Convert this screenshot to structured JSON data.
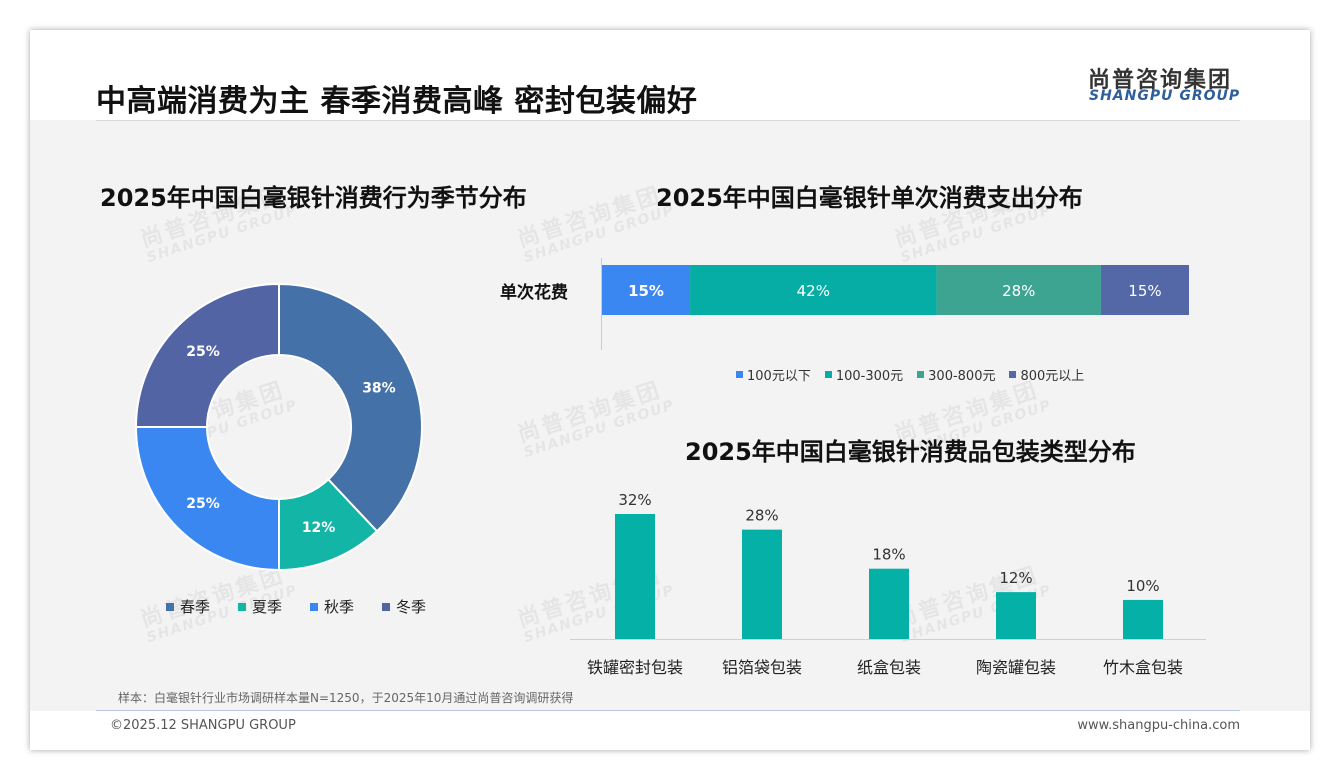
{
  "header": {
    "title": "中高端消费为主 春季消费高峰 密封包装偏好",
    "logo_cn": "尚普咨询集团",
    "logo_en": "SHANGPU GROUP"
  },
  "watermark": {
    "cn": "尚普咨询集团",
    "en": "SHANGPU GROUP"
  },
  "colors": {
    "spring": "#4472a8",
    "summer": "#12b5a6",
    "autumn": "#3a87f2",
    "winter": "#5364a5",
    "seg1": "#3a87f2",
    "seg2": "#05ada5",
    "seg3": "#3da491",
    "seg4": "#5468a8",
    "bars": "#05b0a6"
  },
  "chart_data": [
    {
      "type": "pie",
      "variant": "donut",
      "title": "2025年中国白毫银针消费行为季节分布",
      "categories": [
        "春季",
        "夏季",
        "秋季",
        "冬季"
      ],
      "values": [
        38,
        12,
        25,
        25
      ],
      "data_labels": [
        "38%",
        "12%",
        "25%",
        "25%"
      ],
      "legend": "bottom"
    },
    {
      "type": "bar",
      "variant": "100%-stacked-horizontal",
      "title": "2025年中国白毫银针单次消费支出分布",
      "categories": [
        "单次花费"
      ],
      "series": [
        {
          "name": "100元以下",
          "values": [
            15
          ],
          "label": "15%"
        },
        {
          "name": "100-300元",
          "values": [
            42
          ],
          "label": "42%"
        },
        {
          "name": "300-800元",
          "values": [
            28
          ],
          "label": "28%"
        },
        {
          "name": "800元以上",
          "values": [
            15
          ],
          "label": "15%"
        }
      ],
      "legend": "bottom"
    },
    {
      "type": "bar",
      "title": "2025年中国白毫银针消费品包装类型分布",
      "categories": [
        "铁罐密封包装",
        "铝箔袋包装",
        "纸盒包装",
        "陶瓷罐包装",
        "竹木盒包装"
      ],
      "values": [
        32,
        28,
        18,
        12,
        10
      ],
      "data_labels": [
        "32%",
        "28%",
        "18%",
        "12%",
        "10%"
      ]
    }
  ],
  "footer": {
    "note": "样本：白毫银针行业市场调研样本量N=1250，于2025年10月通过尚普咨询调研获得",
    "copyright": "©2025.12 SHANGPU GROUP",
    "website": "www.shangpu-china.com"
  }
}
